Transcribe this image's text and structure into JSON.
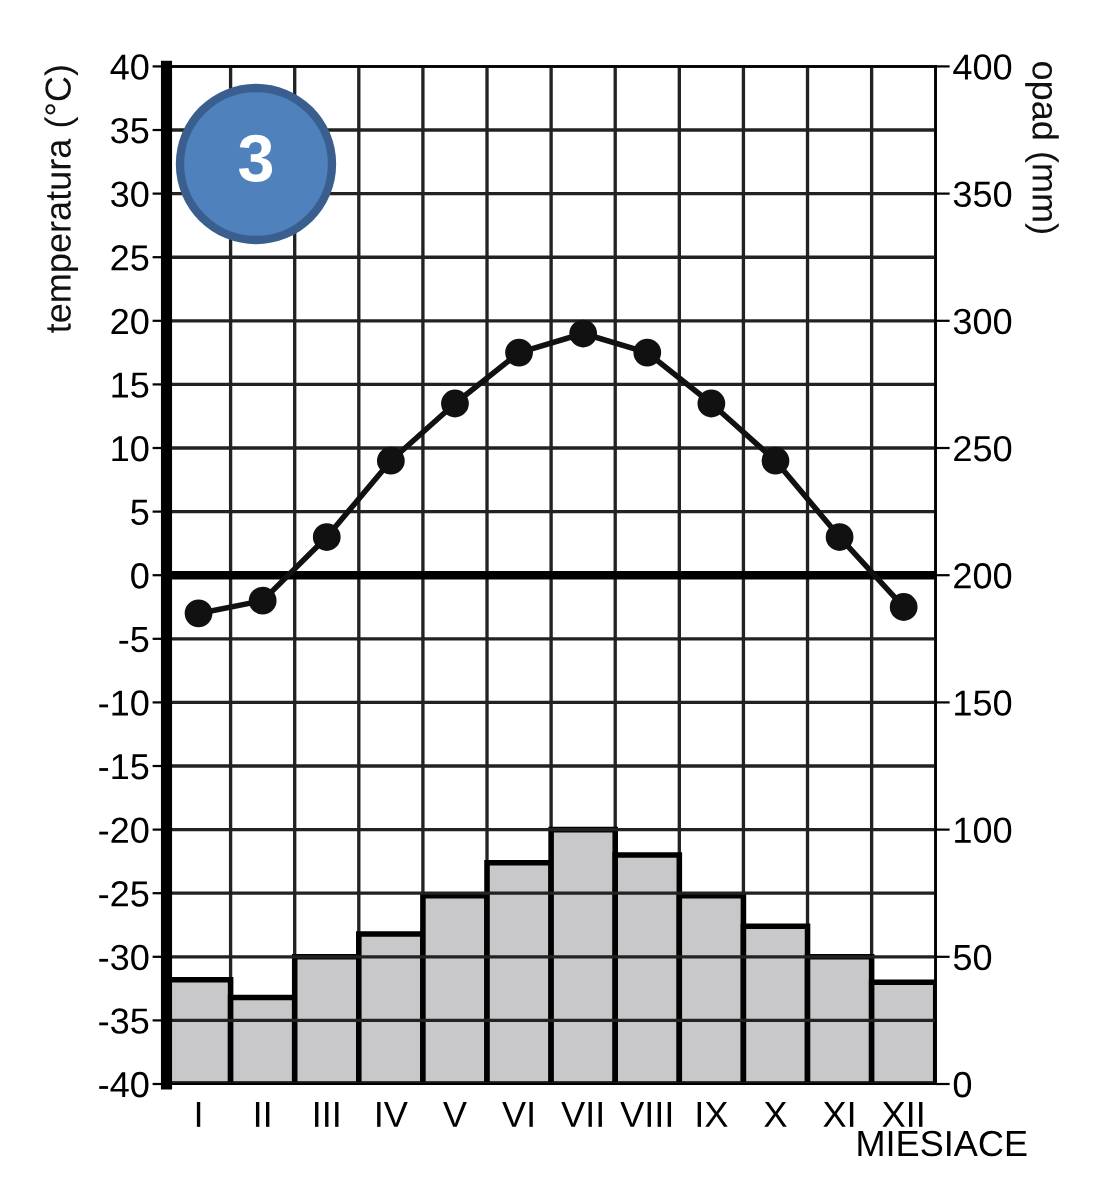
{
  "chart_data": {
    "type": "bar",
    "ylabel": "temperatura (°C)",
    "y2label": "opad (mm)",
    "xlabel": "MIESIACE",
    "categories": [
      "I",
      "II",
      "III",
      "IV",
      "V",
      "VI",
      "VII",
      "VIII",
      "IX",
      "X",
      "XI",
      "XII"
    ],
    "series": [
      {
        "axis": "y2",
        "color": "#c8c8ca",
        "values": [
          41,
          34,
          50,
          59,
          74,
          87,
          100,
          90,
          74,
          62,
          50,
          40
        ]
      },
      {
        "type": "line",
        "axis": "y",
        "color": "#111111",
        "marker": "circle",
        "line_style": "solid",
        "values": [
          -3,
          -2,
          3,
          9,
          13.5,
          17.5,
          19,
          17.5,
          13.5,
          9,
          3,
          -2.5
        ]
      }
    ],
    "ylim": [
      -40,
      40
    ],
    "yticks": [
      -40,
      -35,
      -30,
      -25,
      -20,
      -15,
      -10,
      -5,
      0,
      5,
      10,
      15,
      20,
      25,
      30,
      35,
      40
    ],
    "y2lim": [
      0,
      400
    ],
    "y2ticks": [
      0,
      50,
      100,
      150,
      200,
      250,
      300,
      350,
      400
    ],
    "ref_lines": [
      {
        "axis": "y",
        "value": 0,
        "color": "#000000"
      }
    ],
    "grid": true,
    "annotations": [
      "3"
    ]
  }
}
